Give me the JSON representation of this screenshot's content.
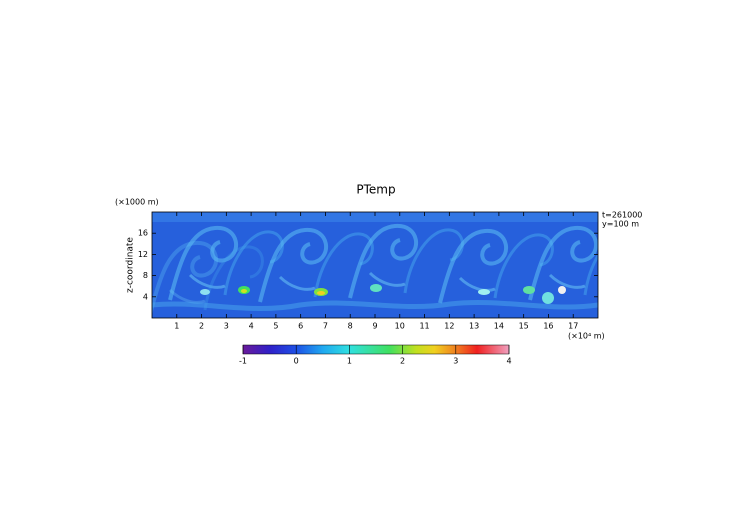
{
  "chart_data": {
    "type": "heatmap",
    "title": "PTemp",
    "y_unit": "(×1000 m)",
    "y_label": "z-coordinate",
    "x_unit": "(×10⁴ m)",
    "annotations": [
      "t=261000",
      "y=100 m"
    ],
    "xlim": [
      0,
      18
    ],
    "xticks": [
      1,
      2,
      3,
      4,
      5,
      6,
      7,
      8,
      9,
      10,
      11,
      12,
      13,
      14,
      15,
      16,
      17
    ],
    "ylim": [
      0,
      20
    ],
    "yticks": [
      4,
      8,
      12,
      16
    ],
    "colorbar": {
      "lim": [
        -1,
        4
      ],
      "ticks": [
        -1,
        0,
        1,
        2,
        3,
        4
      ]
    }
  }
}
